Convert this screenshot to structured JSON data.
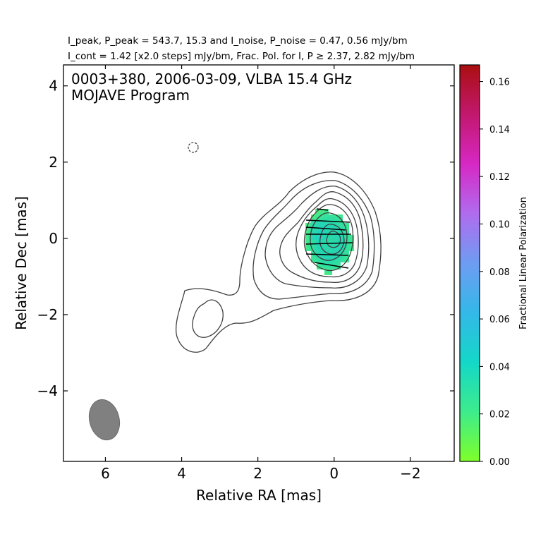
{
  "header": {
    "line1": "I_peak, P_peak = 543.7, 15.3 and I_noise, P_noise = 0.47, 0.56 mJy/bm",
    "line2": "I_cont = 1.42 [x2.0 steps] mJy/bm, Frac. Pol. for I, P ≥ 2.37, 2.82 mJy/bm"
  },
  "chart_data": {
    "type": "contour",
    "title_line1": "0003+380, 2006-03-09, VLBA 15.4 GHz",
    "title_line2": "MOJAVE Program",
    "xlabel": "Relative RA [mas]",
    "ylabel": "Relative Dec [mas]",
    "xlim": [
      7.1,
      -3.15
    ],
    "ylim": [
      -5.85,
      4.55
    ],
    "xticks": [
      6,
      4,
      2,
      0,
      -2
    ],
    "xtick_labels": [
      "6",
      "4",
      "2",
      "0",
      "−2"
    ],
    "yticks": [
      4,
      2,
      0,
      -2,
      -4
    ],
    "ytick_labels": [
      "4",
      "2",
      "0",
      "−2",
      "−4"
    ],
    "axes_direction": "RA increases to the left",
    "contours": {
      "base_mJy_per_beam": 1.42,
      "step_factor": 2.0,
      "count": 9,
      "negative_contour": {
        "center": [
          3.7,
          2.43
        ],
        "style": "dashed"
      }
    },
    "polarization_region": {
      "center": [
        0.0,
        0.0
      ],
      "semi_axes": [
        0.72,
        0.85
      ],
      "fractional_polarization_range": [
        0.02,
        0.045
      ]
    },
    "evpa_ticks": {
      "dec_rows": [
        0.5,
        0.2,
        -0.05,
        -0.35,
        -0.7
      ],
      "angle_note": "EVPA sticks nearly east-west, slight tilt"
    },
    "beam": {
      "center": [
        6.0,
        -4.7
      ],
      "major_mas": 1.05,
      "minor_mas": 0.78,
      "pa_deg": -12,
      "color": "#808080"
    },
    "colorbar": {
      "label": "Fractional Linear Polarization",
      "min": 0.0,
      "max": 0.167,
      "ticks": [
        0.0,
        0.02,
        0.04,
        0.06,
        0.08,
        0.1,
        0.12,
        0.14,
        0.16
      ],
      "tick_labels": [
        "0.00",
        "0.02",
        "0.04",
        "0.06",
        "0.08",
        "0.10",
        "0.12",
        "0.14",
        "0.16"
      ],
      "colormap": [
        "#7fff2a",
        "#3dec8c",
        "#14d7c8",
        "#34b8e8",
        "#6e9cf2",
        "#b06cee",
        "#d628c4",
        "#c2186e",
        "#aa0f10"
      ]
    }
  }
}
